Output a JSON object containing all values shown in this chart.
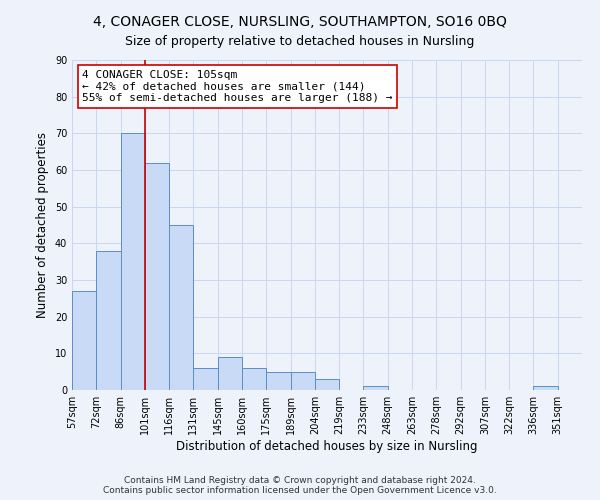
{
  "title": "4, CONAGER CLOSE, NURSLING, SOUTHAMPTON, SO16 0BQ",
  "subtitle": "Size of property relative to detached houses in Nursling",
  "xlabel": "Distribution of detached houses by size in Nursling",
  "ylabel": "Number of detached properties",
  "bin_labels": [
    "57sqm",
    "72sqm",
    "86sqm",
    "101sqm",
    "116sqm",
    "131sqm",
    "145sqm",
    "160sqm",
    "175sqm",
    "189sqm",
    "204sqm",
    "219sqm",
    "233sqm",
    "248sqm",
    "263sqm",
    "278sqm",
    "292sqm",
    "307sqm",
    "322sqm",
    "336sqm",
    "351sqm"
  ],
  "bar_heights": [
    27,
    38,
    70,
    62,
    45,
    6,
    9,
    6,
    5,
    5,
    3,
    0,
    1,
    0,
    0,
    0,
    0,
    0,
    0,
    1,
    0
  ],
  "bar_color": "#c8daf5",
  "bar_edge_color": "#5a8fc4",
  "vline_x_index": 3,
  "vline_color": "#cc0000",
  "annotation_line1": "4 CONAGER CLOSE: 105sqm",
  "annotation_line2": "← 42% of detached houses are smaller (144)",
  "annotation_line3": "55% of semi-detached houses are larger (188) →",
  "annotation_box_color": "#ffffff",
  "annotation_box_edge": "#cc0000",
  "ylim": [
    0,
    90
  ],
  "yticks": [
    0,
    10,
    20,
    30,
    40,
    50,
    60,
    70,
    80,
    90
  ],
  "grid_color": "#c8d8f0",
  "background_color": "#eef2fb",
  "footer_text": "Contains HM Land Registry data © Crown copyright and database right 2024.\nContains public sector information licensed under the Open Government Licence v3.0.",
  "title_fontsize": 10,
  "subtitle_fontsize": 9,
  "axis_label_fontsize": 8.5,
  "tick_fontsize": 7,
  "annotation_fontsize": 8,
  "footer_fontsize": 6.5
}
